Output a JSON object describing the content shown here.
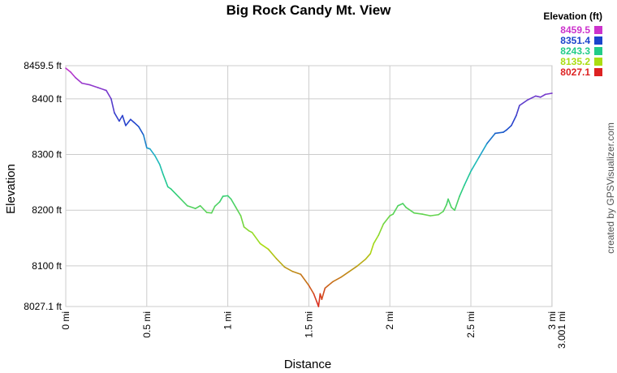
{
  "chart_data": {
    "type": "line",
    "title": "Big Rock Candy Mt. View",
    "xlabel": "Distance",
    "ylabel": "Elevation",
    "xlim": [
      0,
      3.001
    ],
    "ylim": [
      8027.1,
      8459.5
    ],
    "grid": true,
    "x_ticks": [
      {
        "value": 0,
        "label": "0 mi"
      },
      {
        "value": 0.5,
        "label": "0.5 mi"
      },
      {
        "value": 1,
        "label": "1 mi"
      },
      {
        "value": 1.5,
        "label": "1.5 mi"
      },
      {
        "value": 2,
        "label": "2 mi"
      },
      {
        "value": 2.5,
        "label": "2.5 mi"
      },
      {
        "value": 3,
        "label": "3 mi"
      },
      {
        "value": 3.001,
        "label": "3.001 mi"
      }
    ],
    "y_ticks": [
      {
        "value": 8459.5,
        "label": "8459.5 ft"
      },
      {
        "value": 8400,
        "label": "8400 ft"
      },
      {
        "value": 8300,
        "label": "8300 ft"
      },
      {
        "value": 8200,
        "label": "8200 ft"
      },
      {
        "value": 8100,
        "label": "8100 ft"
      },
      {
        "value": 8027.1,
        "label": "8027.1 ft"
      }
    ],
    "legend": {
      "title": "Elevation (ft)",
      "placement": "top-right",
      "entries": [
        {
          "label": "8459.5",
          "color": "#cc33cc"
        },
        {
          "label": "8351.4",
          "color": "#1a44cc"
        },
        {
          "label": "8243.3",
          "color": "#22cc88"
        },
        {
          "label": "8135.2",
          "color": "#aadd11"
        },
        {
          "label": "8027.1",
          "color": "#dd2222"
        }
      ]
    },
    "series": [
      {
        "x": [
          0,
          0.03,
          0.06,
          0.1,
          0.15,
          0.2,
          0.25,
          0.28,
          0.3,
          0.33,
          0.35,
          0.37,
          0.4,
          0.42,
          0.45,
          0.48,
          0.5,
          0.52,
          0.55,
          0.58,
          0.6,
          0.63,
          0.65,
          0.7,
          0.75,
          0.8,
          0.83,
          0.87,
          0.9,
          0.92,
          0.95,
          0.97,
          1.0,
          1.02,
          1.05,
          1.08,
          1.1,
          1.13,
          1.15,
          1.2,
          1.25,
          1.3,
          1.35,
          1.4,
          1.45,
          1.5,
          1.53,
          1.55,
          1.56,
          1.57,
          1.58,
          1.6,
          1.62,
          1.65,
          1.7,
          1.75,
          1.8,
          1.85,
          1.88,
          1.9,
          1.93,
          1.96,
          2.0,
          2.02,
          2.05,
          2.08,
          2.1,
          2.15,
          2.2,
          2.25,
          2.3,
          2.33,
          2.35,
          2.36,
          2.38,
          2.4,
          2.43,
          2.46,
          2.5,
          2.55,
          2.6,
          2.65,
          2.7,
          2.72,
          2.75,
          2.78,
          2.8,
          2.85,
          2.9,
          2.93,
          2.96,
          3.0,
          3.001
        ],
        "y": [
          8455,
          8448,
          8438,
          8428,
          8425,
          8420,
          8415,
          8400,
          8375,
          8360,
          8370,
          8352,
          8363,
          8358,
          8350,
          8335,
          8312,
          8310,
          8298,
          8282,
          8265,
          8242,
          8238,
          8223,
          8208,
          8203,
          8208,
          8196,
          8195,
          8207,
          8215,
          8225,
          8226,
          8220,
          8205,
          8190,
          8170,
          8163,
          8160,
          8140,
          8130,
          8113,
          8098,
          8090,
          8085,
          8065,
          8050,
          8035,
          8027,
          8050,
          8040,
          8060,
          8065,
          8072,
          8080,
          8090,
          8100,
          8112,
          8122,
          8140,
          8155,
          8175,
          8190,
          8193,
          8208,
          8212,
          8205,
          8195,
          8193,
          8190,
          8192,
          8198,
          8210,
          8220,
          8205,
          8200,
          8225,
          8245,
          8270,
          8295,
          8320,
          8338,
          8340,
          8344,
          8352,
          8370,
          8388,
          8398,
          8405,
          8403,
          8408,
          8410,
          8410
        ]
      }
    ]
  },
  "credit": "created by GPSVisualizer.com"
}
